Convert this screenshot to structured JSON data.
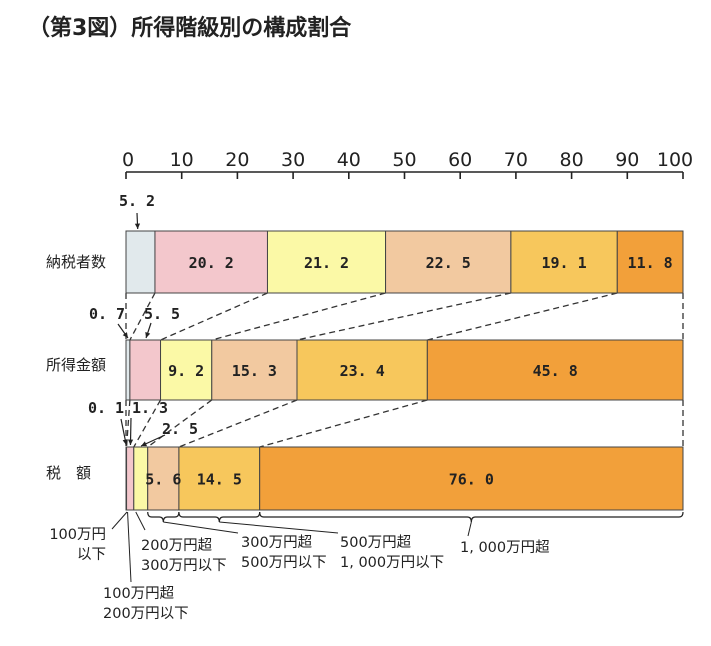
{
  "title": "（第3図）所得階級別の構成割合",
  "chart_data": {
    "type": "bar",
    "orientation": "horizontal-stacked-100",
    "xlim": [
      0,
      100
    ],
    "x_ticks": [
      "0",
      "10",
      "20",
      "30",
      "40",
      "50",
      "60",
      "70",
      "80",
      "90",
      "100"
    ],
    "categories": [
      "納税者数",
      "所得金額",
      "税　額"
    ],
    "series": [
      {
        "color": "#e1e9ec",
        "values": [
          5.2,
          0.7,
          0.1
        ]
      },
      {
        "color": "#f3c7cc",
        "values": [
          20.2,
          5.5,
          1.3
        ]
      },
      {
        "color": "#fbf9a6",
        "values": [
          21.2,
          9.2,
          2.5
        ]
      },
      {
        "color": "#f2c9a0",
        "values": [
          22.5,
          15.3,
          5.6
        ]
      },
      {
        "color": "#f7c75c",
        "values": [
          19.1,
          23.4,
          14.5
        ]
      },
      {
        "color": "#f2a03a",
        "values": [
          11.8,
          45.8,
          76.0
        ]
      }
    ],
    "value_labels": [
      [
        "5. 2",
        "20. 2",
        "21. 2",
        "22. 5",
        "19. 1",
        "11. 8"
      ],
      [
        "0. 7",
        "5. 5",
        "9. 2",
        "15. 3",
        "23. 4",
        "45. 8"
      ],
      [
        "0. 1",
        "1. 3",
        "2. 5",
        "5. 6",
        "14. 5",
        "76. 0"
      ]
    ],
    "bracket_labels": [
      [
        "100万円",
        "以下"
      ],
      [
        "100万円超",
        "200万円以下"
      ],
      [
        "200万円超",
        "300万円以下"
      ],
      [
        "300万円超",
        "500万円以下"
      ],
      [
        "500万円超",
        "1, 000万円以下"
      ],
      [
        "1, 000万円超"
      ]
    ]
  }
}
